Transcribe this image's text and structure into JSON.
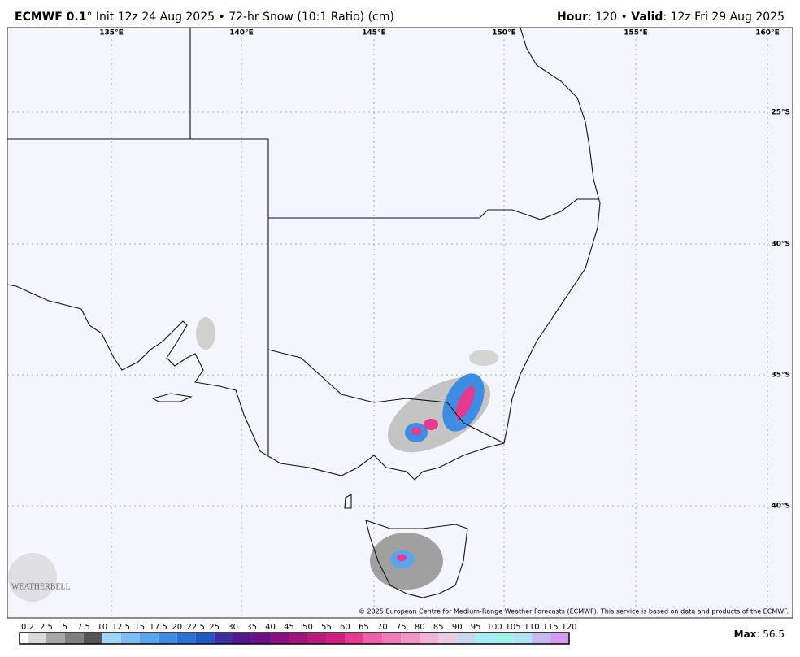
{
  "header": {
    "model": "ECMWF 0.1",
    "init": "° Init 12z 24 Aug 2025 • 72-hr Snow (10:1 Ratio) (cm)",
    "hour_label": "Hour",
    "hour_value": ": 120 • ",
    "valid_label": "Valid",
    "valid_value": ": 12z Fri 29 Aug 2025"
  },
  "map": {
    "longitudes": [
      "135°E",
      "140°E",
      "145°E",
      "150°E",
      "155°E",
      "160°E"
    ],
    "latitudes": [
      "25°S",
      "30°S",
      "35°S",
      "40°S"
    ],
    "logo": "WEATHERBELL",
    "copyright": "© 2025 European Centre for Medium-Range Weather Forecasts (ECMWF). This service is based on data and products of the ECMWF."
  },
  "colorbar": {
    "labels": [
      "0.2",
      "2.5",
      "5",
      "7.5",
      "10",
      "12.5",
      "15",
      "17.5",
      "20",
      "22.5",
      "25",
      "30",
      "35",
      "40",
      "45",
      "50",
      "55",
      "60",
      "65",
      "70",
      "75",
      "80",
      "85",
      "90",
      "95",
      "100",
      "105",
      "110",
      "115",
      "120"
    ],
    "colors": [
      "#ffffff",
      "#d9d9d9",
      "#a6a6a6",
      "#7f7f7f",
      "#555555",
      "#9fd3f7",
      "#7cbcf2",
      "#5aa5ec",
      "#3f8de3",
      "#2a72d6",
      "#1f58c4",
      "#3b2fa3",
      "#54168f",
      "#6d0f85",
      "#88107f",
      "#a0157c",
      "#bb1a7d",
      "#d21f84",
      "#e8388f",
      "#f060a8",
      "#f27ab8",
      "#f495c6",
      "#f3b3d5",
      "#e8cbe3",
      "#c6d8ee",
      "#a4ecf6",
      "#a0f0ea",
      "#b0e4f5",
      "#c7b9f2",
      "#d39cf2"
    ]
  },
  "footer": {
    "max_label": "Max",
    "max_value": ": 56.5"
  }
}
